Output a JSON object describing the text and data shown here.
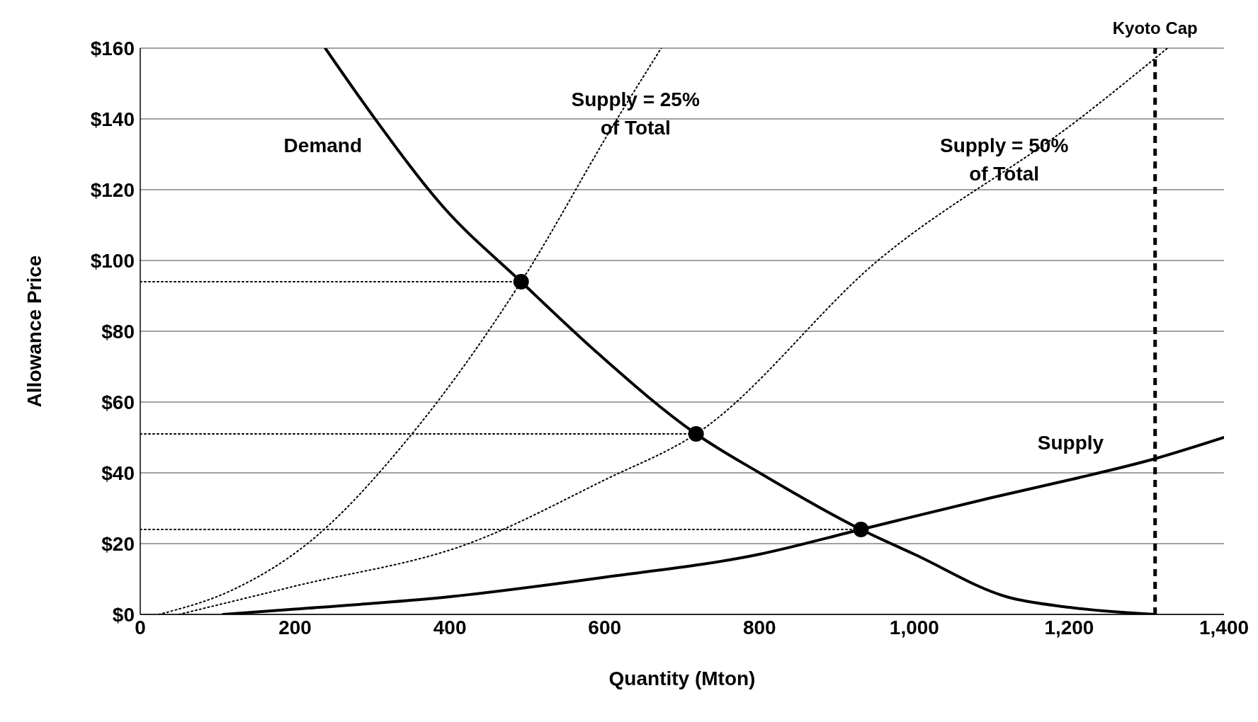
{
  "chart_data": {
    "type": "line",
    "xlabel": "Quantity (Mton)",
    "ylabel": "Allowance Price",
    "xlim": [
      0,
      1400
    ],
    "ylim": [
      0,
      160
    ],
    "xticks": [
      0,
      200,
      400,
      600,
      800,
      {
        "value": 1000,
        "label": "1,000"
      },
      {
        "value": 1200,
        "label": "1,200"
      },
      {
        "value": 1400,
        "label": "1,400"
      }
    ],
    "yticks": [
      {
        "value": 0,
        "label": "$0"
      },
      {
        "value": 20,
        "label": "$20"
      },
      {
        "value": 40,
        "label": "$40"
      },
      {
        "value": 60,
        "label": "$60"
      },
      {
        "value": 80,
        "label": "$80"
      },
      {
        "value": 100,
        "label": "$100"
      },
      {
        "value": 120,
        "label": "$120"
      },
      {
        "value": 140,
        "label": "$140"
      },
      {
        "value": 160,
        "label": "$160"
      }
    ],
    "grid": "y",
    "legend": false,
    "series": [
      {
        "name": "Demand",
        "color": "#000000",
        "line_style": "solid",
        "marker": "none",
        "x": [
          239,
          300,
          392,
          492,
          590,
          718,
          800,
          931,
          1000,
          1119,
          1200,
          1311
        ],
        "values": [
          160,
          141,
          115,
          94,
          74,
          51,
          40,
          24,
          17,
          5,
          2,
          0
        ]
      },
      {
        "name": "Supply",
        "color": "#000000",
        "line_style": "solid",
        "marker": "none",
        "x": [
          107,
          200,
          400,
          600,
          800,
          931,
          1100,
          1200,
          1311,
          1400
        ],
        "values": [
          0,
          1.5,
          5,
          10.5,
          17,
          24,
          33,
          38,
          44,
          50
        ]
      },
      {
        "name": "Supply = 25%\nof Total",
        "color": "#000000",
        "line_style": "dotted",
        "marker": "none",
        "x": [
          24,
          120,
          216,
          351,
          492,
          616,
          673
        ],
        "values": [
          0,
          7,
          20,
          51,
          94,
          140,
          160
        ]
      },
      {
        "name": "Supply = 50%\nof Total",
        "color": "#000000",
        "line_style": "dotted",
        "marker": "none",
        "x": [
          50,
          200,
          424,
          600,
          718,
          953,
          1213,
          1327
        ],
        "values": [
          0,
          8,
          20,
          38,
          51,
          100,
          140,
          160
        ]
      },
      {
        "color": "#000000",
        "line_style": "dotted",
        "marker": "none",
        "x": [
          0,
          492
        ],
        "values": [
          94,
          94
        ]
      },
      {
        "color": "#000000",
        "line_style": "dotted",
        "marker": "none",
        "x": [
          0,
          718
        ],
        "values": [
          51,
          51
        ]
      },
      {
        "color": "#000000",
        "line_style": "dotted",
        "marker": "none",
        "x": [
          0,
          931
        ],
        "values": [
          24,
          24
        ]
      },
      {
        "type": "scatter",
        "color": "#000000",
        "marker": "circle",
        "x": [
          492,
          718,
          931
        ],
        "values": [
          94,
          51,
          24
        ]
      }
    ],
    "ref_lines": [
      {
        "axis": "x",
        "value": 1311,
        "label": "Kyoto Cap",
        "color": "#000000",
        "line_style": "dashed"
      }
    ]
  }
}
